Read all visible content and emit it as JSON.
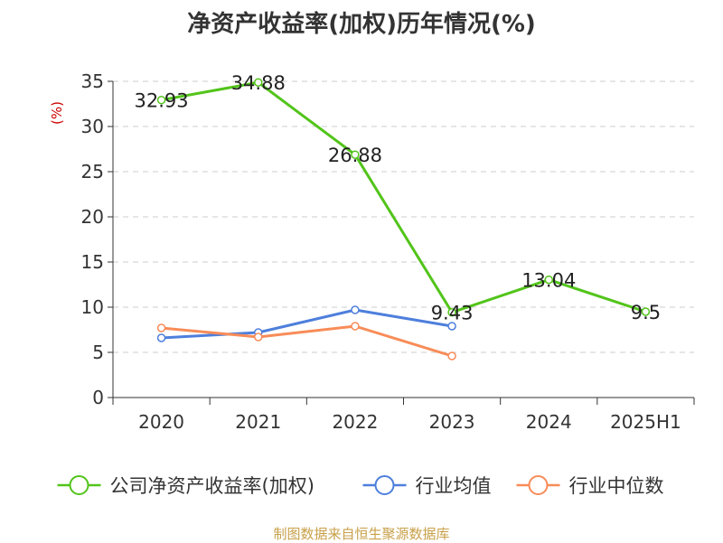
{
  "chart_data": {
    "type": "line",
    "title": "净资产收益率(加权)历年情况(%)",
    "ylabel": "(%)",
    "categories": [
      "2020",
      "2021",
      "2022",
      "2023",
      "2024",
      "2025H1"
    ],
    "ylim": [
      0,
      35
    ],
    "yticks": [
      0,
      5,
      10,
      15,
      20,
      25,
      30,
      35
    ],
    "grid": true,
    "legend_position": "bottom",
    "series": [
      {
        "name": "公司净资产收益率(加权)",
        "color": "#52c41a",
        "values": [
          32.93,
          34.88,
          26.88,
          9.43,
          13.04,
          9.5
        ],
        "labels": [
          "32.93",
          "34.88",
          "26.88",
          "9.43",
          "13.04",
          "9.5"
        ]
      },
      {
        "name": "行业均值",
        "color": "#4e7fdc",
        "values": [
          6.6,
          7.2,
          9.7,
          7.9,
          null,
          null
        ]
      },
      {
        "name": "行业中位数",
        "color": "#f88c58",
        "values": [
          7.7,
          6.7,
          7.9,
          4.6,
          null,
          null
        ]
      }
    ]
  },
  "source": "制图数据来自恒生聚源数据库",
  "colors": {
    "title": "#333333",
    "ylabel": "#cc0000",
    "source": "#c8a04a",
    "axis": "#333333",
    "grid": "#cccccc"
  }
}
